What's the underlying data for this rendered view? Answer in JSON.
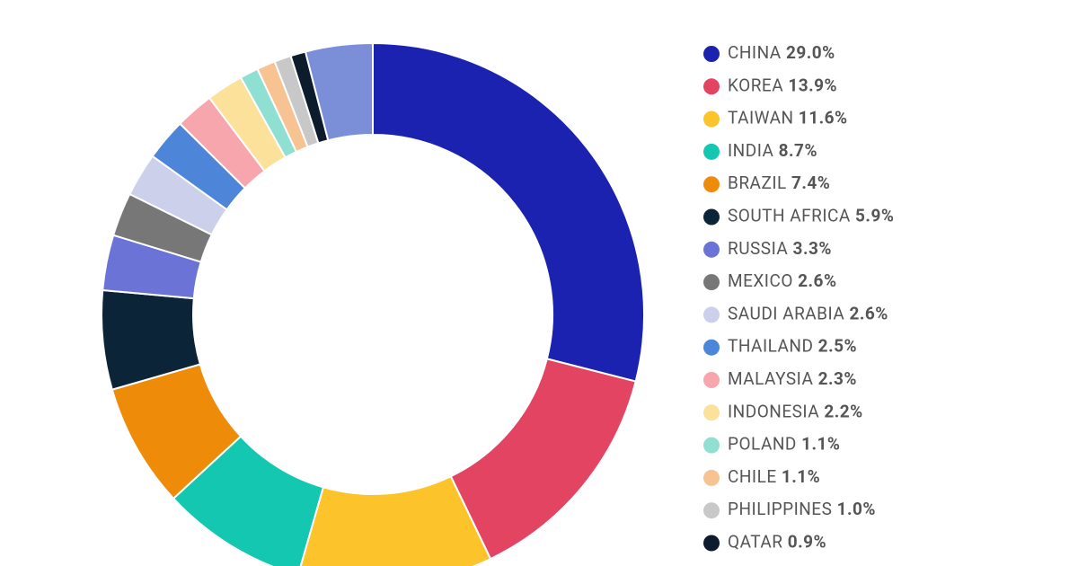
{
  "chart_data": {
    "type": "donut",
    "categories": [
      "CHINA",
      "KOREA",
      "TAIWAN",
      "INDIA",
      "BRAZIL",
      "SOUTH AFRICA",
      "RUSSIA",
      "MEXICO",
      "SAUDI ARABIA",
      "THAILAND",
      "MALAYSIA",
      "INDONESIA",
      "POLAND",
      "CHILE",
      "PHILIPPINES",
      "QATAR",
      null
    ],
    "values": [
      29.0,
      13.9,
      11.6,
      8.7,
      7.4,
      5.9,
      3.3,
      2.6,
      2.6,
      2.5,
      2.3,
      2.2,
      1.1,
      1.1,
      1.0,
      0.9,
      4
    ],
    "value_labels": [
      "29.0%",
      "13.9%",
      "11.6%",
      "8.7%",
      "7.4%",
      "5.9%",
      "3.3%",
      "2.6%",
      "2.6%",
      "2.5%",
      "2.3%",
      "2.2%",
      "1.1%",
      "1.1%",
      "1.0%",
      "0.9%",
      null
    ],
    "colors": [
      "#1c22b0",
      "#e24462",
      "#fcc42a",
      "#14c7b0",
      "#ee8c0a",
      "#0c2438",
      "#6b74d6",
      "#777777",
      "#ccd0ea",
      "#4d85d9",
      "#f6a6ac",
      "#fbe19a",
      "#8fe0d2",
      "#f8c392",
      "#c8c8c8",
      "#0c1c2c",
      "#7b8fd8"
    ]
  }
}
